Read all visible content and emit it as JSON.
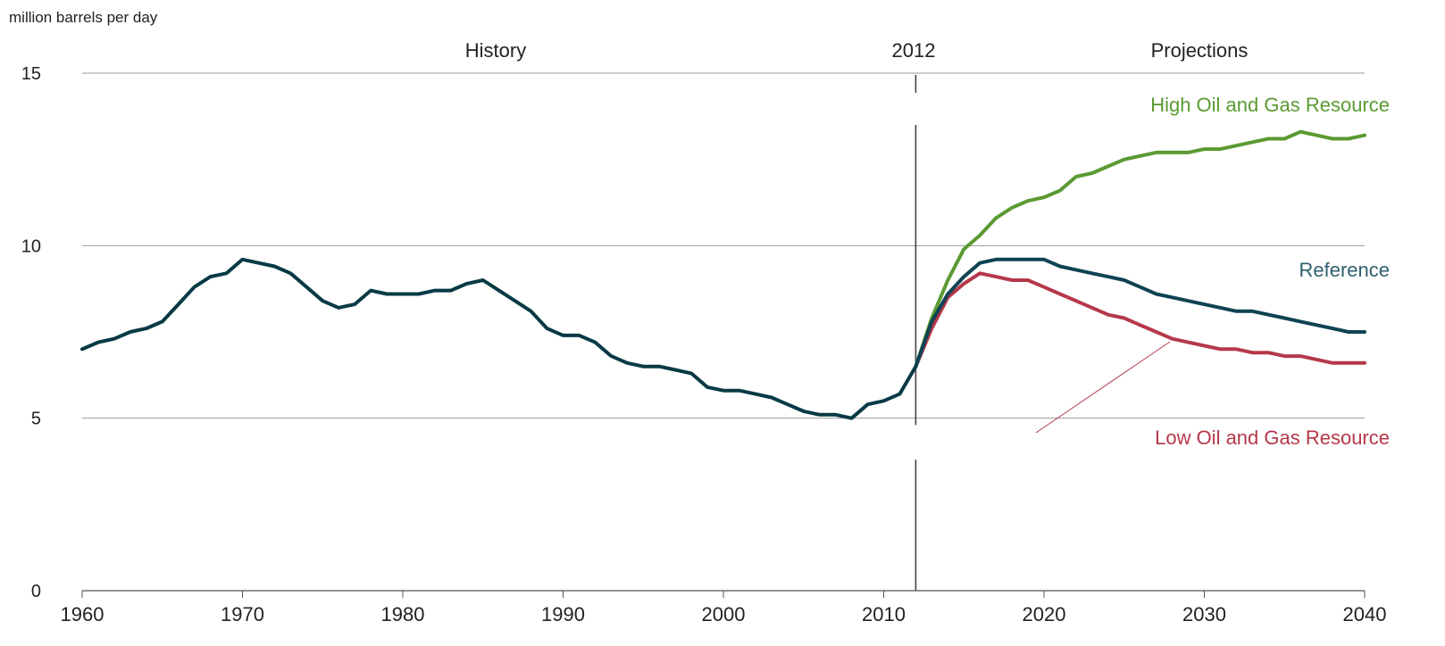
{
  "chart_data": {
    "type": "line",
    "ylabel": "million barrels per day",
    "xlim": [
      1960,
      2040
    ],
    "ylim": [
      0,
      15
    ],
    "yticks": [
      0,
      5,
      10,
      15
    ],
    "xticks": [
      1960,
      1970,
      1980,
      1990,
      2000,
      2010,
      2020,
      2030,
      2040
    ],
    "grid": "horizontal",
    "annotations": {
      "history": "History",
      "divider": "2012",
      "projections": "Projections"
    },
    "divider_year": 2012,
    "colors": {
      "history": "#083a45",
      "reference": "#0e4353",
      "high": "#5a9a32",
      "low": "#b5384a",
      "reference_label": "#2f5f6e",
      "grid": "#999999"
    },
    "series": [
      {
        "key": "history",
        "x": [
          1960,
          1961,
          1962,
          1963,
          1964,
          1965,
          1966,
          1967,
          1968,
          1969,
          1970,
          1971,
          1972,
          1973,
          1974,
          1975,
          1976,
          1977,
          1978,
          1979,
          1980,
          1981,
          1982,
          1983,
          1984,
          1985,
          1986,
          1987,
          1988,
          1989,
          1990,
          1991,
          1992,
          1993,
          1994,
          1995,
          1996,
          1997,
          1998,
          1999,
          2000,
          2001,
          2002,
          2003,
          2004,
          2005,
          2006,
          2007,
          2008,
          2009,
          2010,
          2011,
          2012
        ],
        "y": [
          7.0,
          7.2,
          7.3,
          7.5,
          7.6,
          7.8,
          8.3,
          8.8,
          9.1,
          9.2,
          9.6,
          9.5,
          9.4,
          9.2,
          8.8,
          8.4,
          8.2,
          8.3,
          8.7,
          8.6,
          8.6,
          8.6,
          8.7,
          8.7,
          8.9,
          9.0,
          8.7,
          8.4,
          8.1,
          7.6,
          7.4,
          7.4,
          7.2,
          6.8,
          6.6,
          6.5,
          6.5,
          6.4,
          6.3,
          5.9,
          5.8,
          5.8,
          5.7,
          5.6,
          5.4,
          5.2,
          5.1,
          5.1,
          5.0,
          5.4,
          5.5,
          5.7,
          6.5
        ]
      },
      {
        "key": "high",
        "name": "High Oil and Gas Resource",
        "x": [
          2012,
          2013,
          2014,
          2015,
          2016,
          2017,
          2018,
          2019,
          2020,
          2021,
          2022,
          2023,
          2024,
          2025,
          2026,
          2027,
          2028,
          2029,
          2030,
          2031,
          2032,
          2033,
          2034,
          2035,
          2036,
          2037,
          2038,
          2039,
          2040
        ],
        "y": [
          6.5,
          7.9,
          9.0,
          9.9,
          10.3,
          10.8,
          11.1,
          11.3,
          11.4,
          11.6,
          12.0,
          12.1,
          12.3,
          12.5,
          12.6,
          12.7,
          12.7,
          12.7,
          12.8,
          12.8,
          12.9,
          13.0,
          13.1,
          13.1,
          13.3,
          13.2,
          13.1,
          13.1,
          13.2
        ]
      },
      {
        "key": "reference",
        "name": "Reference",
        "x": [
          2012,
          2013,
          2014,
          2015,
          2016,
          2017,
          2018,
          2019,
          2020,
          2021,
          2022,
          2023,
          2024,
          2025,
          2026,
          2027,
          2028,
          2029,
          2030,
          2031,
          2032,
          2033,
          2034,
          2035,
          2036,
          2037,
          2038,
          2039,
          2040
        ],
        "y": [
          6.5,
          7.8,
          8.6,
          9.1,
          9.5,
          9.6,
          9.6,
          9.6,
          9.6,
          9.4,
          9.3,
          9.2,
          9.1,
          9.0,
          8.8,
          8.6,
          8.5,
          8.4,
          8.3,
          8.2,
          8.1,
          8.1,
          8.0,
          7.9,
          7.8,
          7.7,
          7.6,
          7.5,
          7.5
        ]
      },
      {
        "key": "low",
        "name": "Low Oil and Gas Resource",
        "x": [
          2012,
          2013,
          2014,
          2015,
          2016,
          2017,
          2018,
          2019,
          2020,
          2021,
          2022,
          2023,
          2024,
          2025,
          2026,
          2027,
          2028,
          2029,
          2030,
          2031,
          2032,
          2033,
          2034,
          2035,
          2036,
          2037,
          2038,
          2039,
          2040
        ],
        "y": [
          6.5,
          7.6,
          8.5,
          8.9,
          9.2,
          9.1,
          9.0,
          9.0,
          8.8,
          8.6,
          8.4,
          8.2,
          8.0,
          7.9,
          7.7,
          7.5,
          7.3,
          7.2,
          7.1,
          7.0,
          7.0,
          6.9,
          6.9,
          6.8,
          6.8,
          6.7,
          6.6,
          6.6,
          6.6
        ]
      }
    ]
  }
}
